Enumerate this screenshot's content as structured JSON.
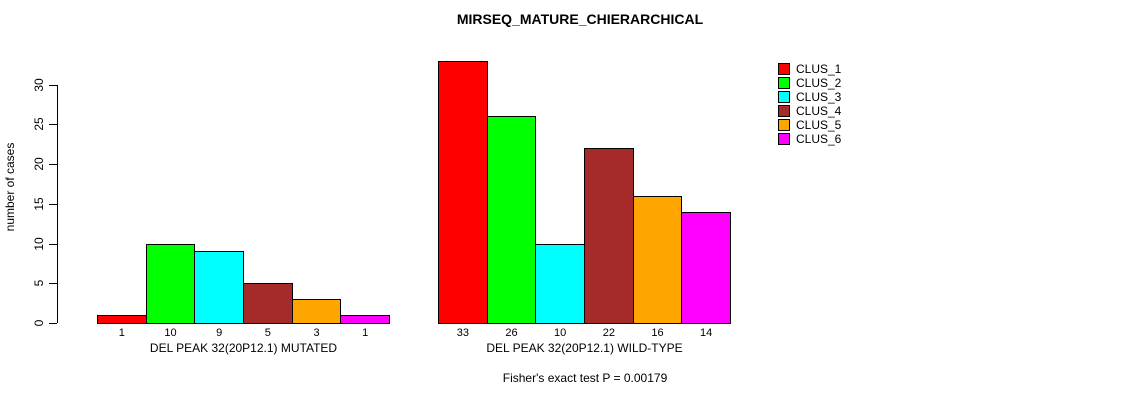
{
  "chart_data": {
    "type": "bar",
    "title": "MIRSEQ_MATURE_CHIERARCHICAL",
    "ylabel": "number of cases",
    "ylim": [
      0,
      33
    ],
    "yticks": [
      0,
      5,
      10,
      15,
      20,
      25,
      30
    ],
    "grid": false,
    "legend_position": "top-right",
    "legend": [
      {
        "label": "CLUS_1",
        "color": "#FF0000"
      },
      {
        "label": "CLUS_2",
        "color": "#00FF00"
      },
      {
        "label": "CLUS_3",
        "color": "#00FFFF"
      },
      {
        "label": "CLUS_4",
        "color": "#A52A2A"
      },
      {
        "label": "CLUS_5",
        "color": "#FFA500"
      },
      {
        "label": "CLUS_6",
        "color": "#FF00FF"
      }
    ],
    "groups": [
      {
        "label": "DEL PEAK 32(20P12.1) MUTATED",
        "values": [
          1,
          10,
          9,
          5,
          3,
          1
        ]
      },
      {
        "label": "DEL PEAK 32(20P12.1) WILD-TYPE",
        "values": [
          33,
          26,
          10,
          22,
          16,
          14
        ]
      }
    ],
    "value_labels_shown": true,
    "annotation": "Fisher's exact test P = 0.00179"
  }
}
